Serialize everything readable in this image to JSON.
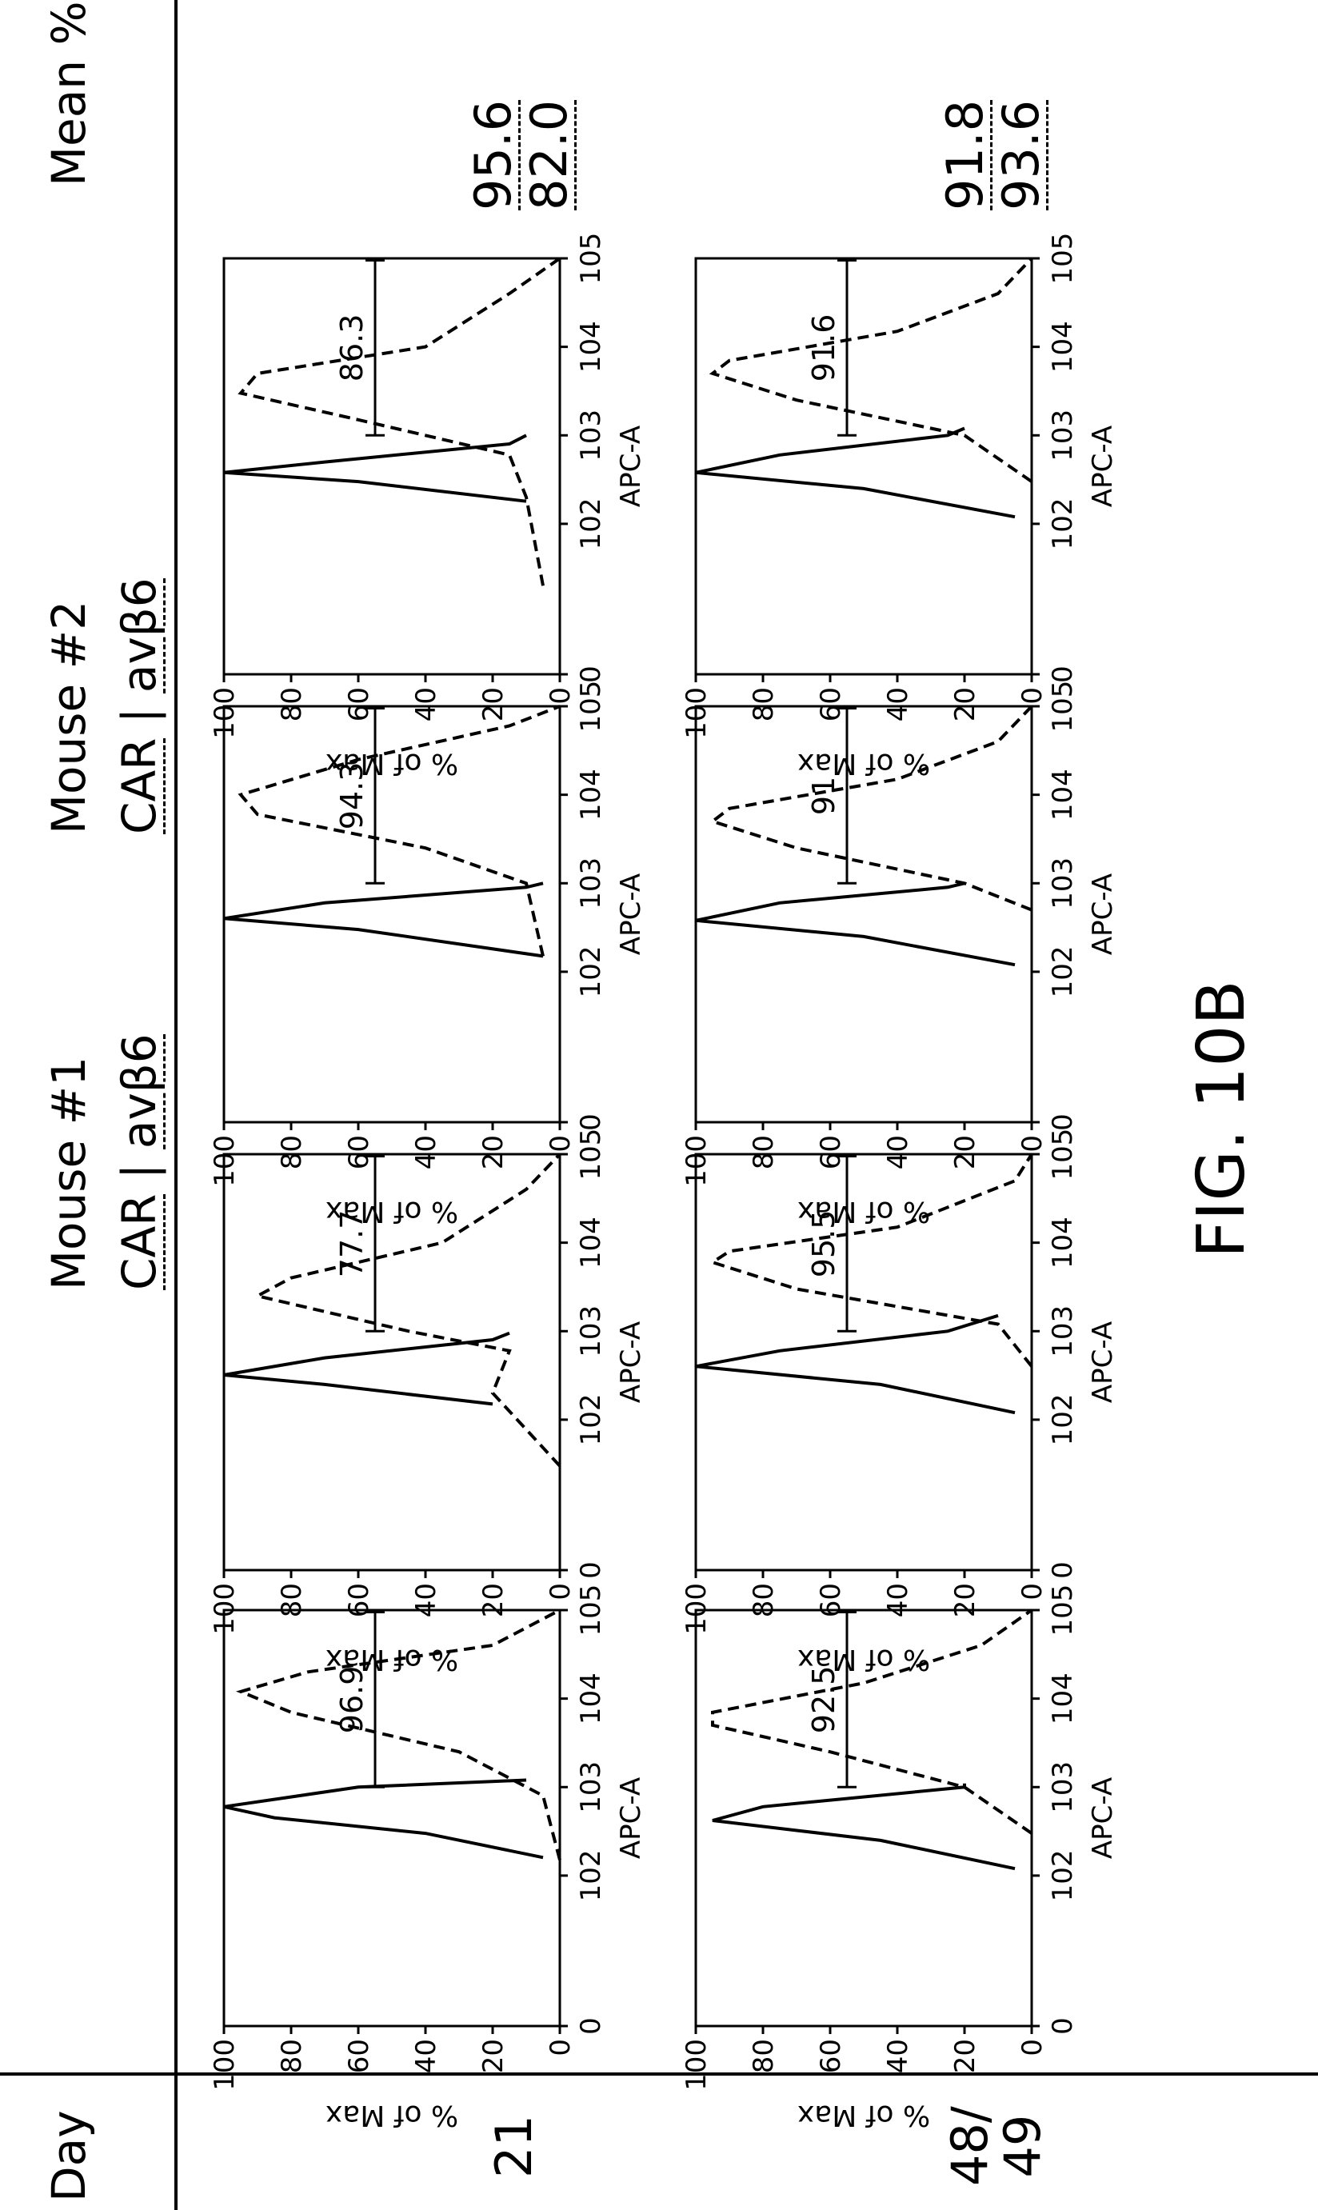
{
  "header": {
    "day_label": "Day",
    "mouse1_label": "Mouse #1",
    "mouse2_label": "Mouse #2",
    "legend_car": "CAR",
    "legend_sep": "|",
    "legend_av": "avβ6",
    "mean_label": "Mean %"
  },
  "rows": [
    {
      "day": "21",
      "mean_values": [
        "95.6",
        "82.0"
      ]
    },
    {
      "day": "48/\n49",
      "mean_values": [
        "91.8",
        "93.6"
      ]
    }
  ],
  "figure_label": "FIG. 10B",
  "chart_data": [
    {
      "type": "line",
      "row": "21",
      "mouse": "Mouse #1",
      "panel": 1,
      "gate_value": "96.9",
      "xlabel": "APC-A",
      "ylabel": "% of Max",
      "x_scale": "log",
      "xlim": [
        0,
        100000
      ],
      "ylim": [
        0,
        100
      ],
      "x_ticks": [
        "0",
        "10^2",
        "10^3",
        "10^4",
        "10^5"
      ],
      "y_ticks": [
        "0",
        "20",
        "40",
        "60",
        "80",
        "100"
      ],
      "series": [
        {
          "name": "CAR",
          "style": "solid",
          "x": [
            160,
            300,
            450,
            600,
            1000,
            1200
          ],
          "y": [
            5,
            40,
            85,
            100,
            60,
            10
          ]
        },
        {
          "name": "avβ6",
          "style": "dashed",
          "x": [
            150,
            800,
            2500,
            7000,
            12000,
            20000,
            40000,
            100000
          ],
          "y": [
            0,
            5,
            30,
            80,
            95,
            75,
            20,
            0
          ]
        }
      ]
    },
    {
      "type": "line",
      "row": "21",
      "mouse": "Mouse #1",
      "panel": 2,
      "gate_value": "77.7",
      "xlabel": "APC-A",
      "ylabel": "% of Max",
      "x_scale": "log",
      "xlim": [
        0,
        100000
      ],
      "ylim": [
        0,
        100
      ],
      "x_ticks": [
        "0",
        "10^2",
        "10^3",
        "10^4",
        "10^5"
      ],
      "y_ticks": [
        "0",
        "20",
        "40",
        "60",
        "80",
        "100"
      ],
      "series": [
        {
          "name": "CAR",
          "style": "solid",
          "x": [
            150,
            250,
            320,
            500,
            800,
            950
          ],
          "y": [
            20,
            70,
            100,
            70,
            20,
            15
          ]
        },
        {
          "name": "avβ6",
          "style": "dashed",
          "x": [
            30,
            200,
            600,
            1000,
            2500,
            4000,
            10000,
            40000,
            100000
          ],
          "y": [
            0,
            20,
            15,
            45,
            90,
            80,
            35,
            10,
            0
          ]
        }
      ]
    },
    {
      "type": "line",
      "row": "21",
      "mouse": "Mouse #2",
      "panel": 3,
      "gate_value": "94.3",
      "xlabel": "APC-A",
      "ylabel": "% of Max",
      "x_scale": "log",
      "xlim": [
        0,
        100000
      ],
      "ylim": [
        0,
        100
      ],
      "x_ticks": [
        "0",
        "10^2",
        "10^3",
        "10^4",
        "10^5"
      ],
      "y_ticks": [
        "0",
        "20",
        "40",
        "60",
        "80",
        "100"
      ],
      "series": [
        {
          "name": "CAR",
          "style": "solid",
          "x": [
            150,
            300,
            400,
            600,
            900,
            1000
          ],
          "y": [
            5,
            60,
            100,
            70,
            10,
            5
          ]
        },
        {
          "name": "avβ6",
          "style": "dashed",
          "x": [
            150,
            1000,
            2500,
            6000,
            10000,
            25000,
            60000,
            100000
          ],
          "y": [
            5,
            10,
            40,
            90,
            95,
            60,
            15,
            0
          ]
        }
      ]
    },
    {
      "type": "line",
      "row": "21",
      "mouse": "Mouse #2",
      "panel": 4,
      "gate_value": "86.3",
      "xlabel": "APC-A",
      "ylabel": "% of Max",
      "x_scale": "log",
      "xlim": [
        0,
        100000
      ],
      "ylim": [
        0,
        100
      ],
      "x_ticks": [
        "0",
        "10^2",
        "10^3",
        "10^4",
        "10^5"
      ],
      "y_ticks": [
        "0",
        "20",
        "40",
        "60",
        "80",
        "100"
      ],
      "series": [
        {
          "name": "CAR",
          "style": "solid",
          "x": [
            180,
            300,
            380,
            500,
            800,
            1000
          ],
          "y": [
            10,
            60,
            100,
            70,
            15,
            10
          ]
        },
        {
          "name": "avβ6",
          "style": "dashed",
          "x": [
            20,
            200,
            600,
            1500,
            3000,
            5000,
            10000,
            40000,
            100000
          ],
          "y": [
            5,
            10,
            15,
            60,
            95,
            90,
            40,
            15,
            0
          ]
        }
      ]
    },
    {
      "type": "line",
      "row": "48/49",
      "mouse": "Mouse #1",
      "panel": 1,
      "gate_value": "92.5",
      "xlabel": "APC-A",
      "ylabel": "% of Max",
      "x_scale": "log",
      "xlim": [
        0,
        100000
      ],
      "ylim": [
        0,
        100
      ],
      "x_ticks": [
        "0",
        "10^2",
        "10^3",
        "10^4",
        "10^5"
      ],
      "y_ticks": [
        "0",
        "20",
        "40",
        "60",
        "80",
        "100"
      ],
      "series": [
        {
          "name": "CAR",
          "style": "solid",
          "x": [
            120,
            250,
            420,
            600,
            1000,
            1100
          ],
          "y": [
            5,
            45,
            95,
            80,
            20,
            20
          ]
        },
        {
          "name": "avβ6",
          "style": "dashed",
          "x": [
            300,
            1000,
            2500,
            5000,
            7000,
            15000,
            40000,
            100000
          ],
          "y": [
            0,
            20,
            60,
            95,
            95,
            50,
            15,
            0
          ]
        }
      ]
    },
    {
      "type": "line",
      "row": "48/49",
      "mouse": "Mouse #1",
      "panel": 2,
      "gate_value": "95.5",
      "xlabel": "APC-A",
      "ylabel": "% of Max",
      "x_scale": "log",
      "xlim": [
        0,
        100000
      ],
      "ylim": [
        0,
        100
      ],
      "x_ticks": [
        "0",
        "10^2",
        "10^3",
        "10^4",
        "10^5"
      ],
      "y_ticks": [
        "0",
        "20",
        "40",
        "60",
        "80",
        "100"
      ],
      "series": [
        {
          "name": "CAR",
          "style": "solid",
          "x": [
            120,
            250,
            400,
            600,
            1000,
            1500
          ],
          "y": [
            5,
            45,
            100,
            75,
            25,
            10
          ]
        },
        {
          "name": "avβ6",
          "style": "dashed",
          "x": [
            400,
            1200,
            3000,
            6000,
            8000,
            15000,
            50000,
            100000
          ],
          "y": [
            0,
            10,
            70,
            95,
            90,
            40,
            5,
            0
          ]
        }
      ]
    },
    {
      "type": "line",
      "row": "48/49",
      "mouse": "Mouse #2",
      "panel": 3,
      "gate_value": "91",
      "xlabel": "APC-A",
      "ylabel": "% of Max",
      "x_scale": "log",
      "xlim": [
        0,
        100000
      ],
      "ylim": [
        0,
        100
      ],
      "x_ticks": [
        "0",
        "10^2",
        "10^3",
        "10^4",
        "10^5"
      ],
      "y_ticks": [
        "0",
        "20",
        "40",
        "60",
        "80",
        "100"
      ],
      "series": [
        {
          "name": "CAR",
          "style": "solid",
          "x": [
            120,
            250,
            380,
            600,
            900,
            1000
          ],
          "y": [
            5,
            50,
            100,
            75,
            25,
            20
          ]
        },
        {
          "name": "avβ6",
          "style": "dashed",
          "x": [
            500,
            1000,
            2500,
            5000,
            7000,
            15000,
            40000,
            100000
          ],
          "y": [
            0,
            20,
            70,
            95,
            90,
            40,
            10,
            0
          ]
        }
      ]
    },
    {
      "type": "line",
      "row": "48/49",
      "mouse": "Mouse #2",
      "panel": 4,
      "gate_value": "91.6",
      "xlabel": "APC-A",
      "ylabel": "% of Max",
      "x_scale": "log",
      "xlim": [
        0,
        100000
      ],
      "ylim": [
        0,
        100
      ],
      "x_ticks": [
        "0",
        "10^2",
        "10^3",
        "10^4",
        "10^5"
      ],
      "y_ticks": [
        "0",
        "20",
        "40",
        "60",
        "80",
        "100"
      ],
      "series": [
        {
          "name": "CAR",
          "style": "solid",
          "x": [
            120,
            250,
            380,
            600,
            1000,
            1200
          ],
          "y": [
            5,
            50,
            100,
            75,
            25,
            20
          ]
        },
        {
          "name": "avβ6",
          "style": "dashed",
          "x": [
            300,
            1000,
            2500,
            5000,
            7000,
            15000,
            40000,
            100000
          ],
          "y": [
            0,
            20,
            70,
            95,
            90,
            40,
            10,
            0
          ]
        }
      ]
    }
  ]
}
